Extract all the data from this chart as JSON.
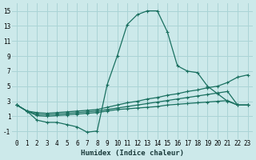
{
  "xlabel": "Humidex (Indice chaleur)",
  "background_color": "#cce9ea",
  "grid_color": "#aad4d6",
  "line_color": "#1a7060",
  "xlim": [
    -0.5,
    23.5
  ],
  "ylim": [
    -2.0,
    16.0
  ],
  "xticks": [
    0,
    1,
    2,
    3,
    4,
    5,
    6,
    7,
    8,
    9,
    10,
    11,
    12,
    13,
    14,
    15,
    16,
    17,
    18,
    19,
    20,
    21,
    22,
    23
  ],
  "yticks": [
    -1,
    1,
    3,
    5,
    7,
    9,
    11,
    13,
    15
  ],
  "line1_x": [
    0,
    1,
    2,
    3,
    4,
    5,
    6,
    7,
    8,
    9,
    10,
    11,
    12,
    13,
    14,
    15,
    16,
    17,
    18,
    19,
    20,
    21,
    22,
    23
  ],
  "line1_y": [
    2.5,
    1.7,
    0.5,
    0.2,
    0.2,
    -0.1,
    -0.4,
    -1.1,
    -0.95,
    5.2,
    9.0,
    13.2,
    14.5,
    15.0,
    15.0,
    12.2,
    7.7,
    7.0,
    6.8,
    5.0,
    4.0,
    3.0,
    2.5,
    2.5
  ],
  "line2_x": [
    0,
    1,
    2,
    3,
    4,
    5,
    6,
    7,
    8,
    9,
    10,
    11,
    12,
    13,
    14,
    15,
    16,
    17,
    18,
    19,
    20,
    21,
    22,
    23
  ],
  "line2_y": [
    2.5,
    1.7,
    1.5,
    1.4,
    1.5,
    1.6,
    1.7,
    1.8,
    1.9,
    2.2,
    2.5,
    2.8,
    3.0,
    3.3,
    3.5,
    3.8,
    4.0,
    4.3,
    4.5,
    4.8,
    5.0,
    5.5,
    6.2,
    6.5
  ],
  "line3_x": [
    0,
    1,
    2,
    3,
    4,
    5,
    6,
    7,
    8,
    9,
    10,
    11,
    12,
    13,
    14,
    15,
    16,
    17,
    18,
    19,
    20,
    21,
    22,
    23
  ],
  "line3_y": [
    2.5,
    1.7,
    1.3,
    1.2,
    1.3,
    1.4,
    1.5,
    1.6,
    1.7,
    1.9,
    2.1,
    2.3,
    2.5,
    2.7,
    2.9,
    3.1,
    3.3,
    3.5,
    3.7,
    3.9,
    4.1,
    4.3,
    2.5,
    2.5
  ],
  "line4_x": [
    0,
    1,
    2,
    3,
    4,
    5,
    6,
    7,
    8,
    9,
    10,
    11,
    12,
    13,
    14,
    15,
    16,
    17,
    18,
    19,
    20,
    21,
    22,
    23
  ],
  "line4_y": [
    2.5,
    1.7,
    1.1,
    1.0,
    1.1,
    1.2,
    1.3,
    1.4,
    1.5,
    1.7,
    1.9,
    2.0,
    2.1,
    2.2,
    2.3,
    2.5,
    2.6,
    2.7,
    2.8,
    2.9,
    3.0,
    3.1,
    2.5,
    2.5
  ]
}
